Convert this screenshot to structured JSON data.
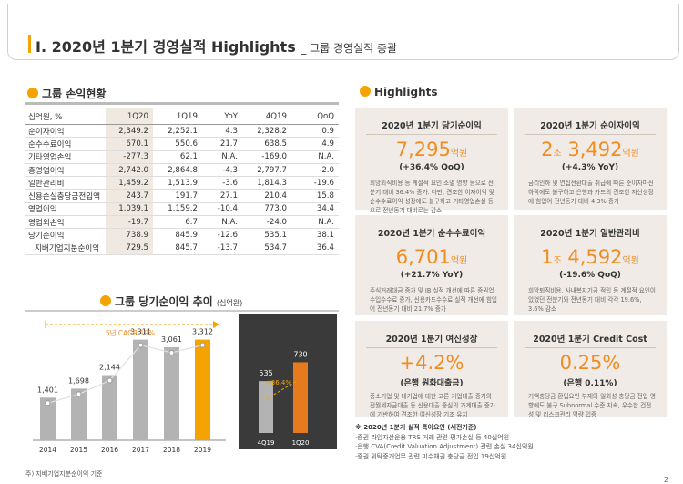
{
  "header": {
    "main_title": "I. 2020년 1분기 경영실적 Highlights",
    "sub_title": "_ 그룹 경영실적 총괄"
  },
  "income_section": {
    "title": "그룹 손익현황",
    "columns": [
      "십억원, %",
      "1Q20",
      "1Q19",
      "YoY",
      "4Q19",
      "QoQ"
    ],
    "rows": [
      [
        "순이자이익",
        "2,349.2",
        "2,252.1",
        "4.3",
        "2,328.2",
        "0.9"
      ],
      [
        "순수수료이익",
        "670.1",
        "550.6",
        "21.7",
        "638.5",
        "4.9"
      ],
      [
        "기타영업손익",
        "-277.3",
        "62.1",
        "N.A.",
        "-169.0",
        "N.A."
      ],
      [
        "총영업이익",
        "2,742.0",
        "2,864.8",
        "-4.3",
        "2,797.7",
        "-2.0"
      ],
      [
        "일반관리비",
        "1,459.2",
        "1,513.9",
        "-3.6",
        "1,814.3",
        "-19.6"
      ],
      [
        "신용손실충당금전입액",
        "243.7",
        "191.7",
        "27.1",
        "210.4",
        "15.8"
      ],
      [
        "영업이익",
        "1,039.1",
        "1,159.2",
        "-10.4",
        "773.0",
        "34.4"
      ],
      [
        "영업외손익",
        "-19.7",
        "6.7",
        "N.A.",
        "-24.0",
        "N.A."
      ],
      [
        "당기순이익",
        "738.9",
        "845.9",
        "-12.6",
        "535.1",
        "38.1"
      ],
      [
        "지배기업지분순이익",
        "729.5",
        "845.7",
        "-13.7",
        "534.7",
        "36.4"
      ]
    ]
  },
  "chart_section": {
    "title": "그룹 당기순이익 추이",
    "unit": "(십억원)",
    "footnote": "주) 지배기업지분순이익 기준"
  },
  "chart_data": [
    {
      "type": "bar",
      "title": "그룹 당기순이익 추이",
      "categories": [
        "2014",
        "2015",
        "2016",
        "2017",
        "2018",
        "2019"
      ],
      "values": [
        1401,
        1698,
        2144,
        3311,
        3061,
        3312
      ],
      "value_labels": [
        "1,401",
        "1,698",
        "2,144",
        "3,311",
        "3,061",
        "3,312"
      ],
      "annotation": "5년 CAGR 19%",
      "ylim": [
        0,
        3600
      ]
    },
    {
      "type": "bar",
      "categories": [
        "4Q19",
        "1Q20"
      ],
      "values": [
        535,
        730
      ],
      "value_labels": [
        "535",
        "730"
      ],
      "annotation": "+36.4%",
      "ylim": [
        0,
        800
      ]
    }
  ],
  "highlights": {
    "title": "Highlights",
    "cards": [
      {
        "title": "2020년 1분기 당기순이익",
        "big_prefix": "",
        "big_num": "7,295",
        "big_unit": "억원",
        "big_mid": "",
        "big_num2": "",
        "big_unit2": "",
        "sub": "(+36.4% QoQ)",
        "desc": "희망퇴직비용 등 계절적 요인 소멸 영향 등으로 전분기 대비 36.4% 증가. 다만, 견조한 이자이익 및 순수수료이익 성장에도 불구하고 기타영업손실 등으로 전년동기 대비로는 감소"
      },
      {
        "title": "2020년 1분기 순이자이익",
        "big_prefix": "",
        "big_num": "2",
        "big_unit": "조",
        "big_mid": "",
        "big_num2": "3,492",
        "big_unit2": "억원",
        "sub": "(+4.3% YoY)",
        "desc": "금리인하 및 연십전환대출 취급에 따른 순이자마진 하락에도 불구하고 은행과 카드의 견조한 자산성장에 힘입어 전년동기 대비 4.3% 증가"
      },
      {
        "title": "2020년 1분기 순수수료이익",
        "big_prefix": "",
        "big_num": "6,701",
        "big_unit": "억원",
        "big_mid": "",
        "big_num2": "",
        "big_unit2": "",
        "sub": "(+21.7% YoY)",
        "desc": "주식거래대금 증가 및 IB 실적 개선에 따른 증권업 수입수수료 증가, 신용카드수수료 실적 개선에 힘입어 전년동기 대비 21.7% 증가"
      },
      {
        "title": "2020년 1분기 일반관리비",
        "big_prefix": "",
        "big_num": "1",
        "big_unit": "조",
        "big_mid": "",
        "big_num2": "4,592",
        "big_unit2": "억원",
        "sub": "(-19.6% QoQ)",
        "desc": "희망퇴직비용, 사내복지기금 적립 등 계절적 요인이 있었던 전분기와 전년동기 대비 각각 19.6%, 3.6% 감소"
      },
      {
        "title": "2020년 1분기 여신성장",
        "big_prefix": "",
        "big_num": "+4.2%",
        "big_unit": "",
        "big_mid": "",
        "big_num2": "",
        "big_unit2": "",
        "sub": "(은행 원화대출금)",
        "desc": "중소기업 및 대기업에 대한 고른 기업대출 증가와 전월세자금대출 등 신용대출 중심의 가계대출 증가에 기반하여 견조한 여신성장 기조 유지"
      },
      {
        "title": "2020년 1분기 Credit Cost",
        "big_prefix": "",
        "big_num": "0.25%",
        "big_unit": "",
        "big_mid": "",
        "big_num2": "",
        "big_unit2": "",
        "sub": "(은행 0.11%)",
        "desc": "거액충당금 환입요인 부재와 일회성 충당금 전입 영향에도 불구 Subnormal 수준 지속, 우수한 건전성 및 리스크관리 역량 입증"
      }
    ]
  },
  "notes": {
    "title": "※ 2020년 1분기 실적 특이요인 (세전기준)",
    "items": [
      "·증권 라임자산운용 TRS 거래 관련 평가손실 등 40십억원",
      "·은행 CVA(Credit Valuation Adjustment) 관련 손실 34십억원",
      "·증권 위탁증개업무 관련 미수채권 충당금 전입 19십억원"
    ]
  },
  "page_number": "2",
  "colors": {
    "accent": "#f4a300",
    "orange_text": "#f28c1f",
    "card_bg": "#f0ebe6",
    "bar_gray": "#b3b3b3"
  }
}
